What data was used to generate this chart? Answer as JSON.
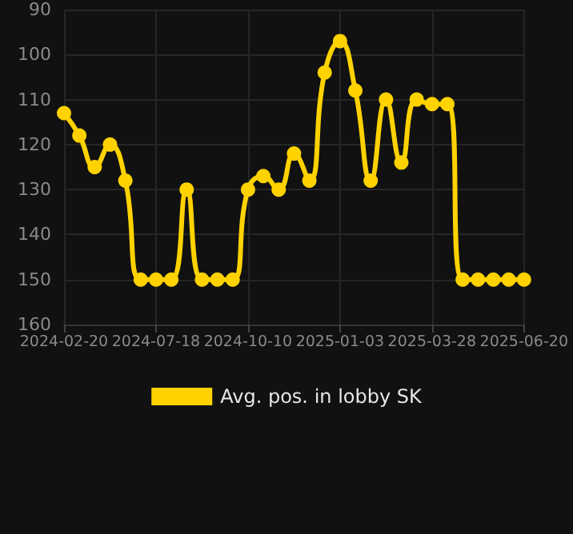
{
  "chart_data": {
    "type": "line",
    "categories": [
      "2024-02-20",
      null,
      null,
      null,
      null,
      null,
      "2024-07-18",
      null,
      null,
      null,
      null,
      null,
      "2024-10-10",
      null,
      null,
      null,
      null,
      null,
      "2025-01-03",
      null,
      null,
      null,
      null,
      null,
      "2025-03-28",
      null,
      null,
      null,
      null,
      null,
      "2025-06-20"
    ],
    "series": [
      {
        "name": "Avg. pos. in lobby SK",
        "color": "#ffd200",
        "values": [
          113,
          118,
          125,
          120,
          128,
          150,
          150,
          150,
          130,
          150,
          150,
          150,
          130,
          127,
          130,
          122,
          128,
          104,
          97,
          108,
          128,
          110,
          124,
          110,
          111,
          111,
          150,
          150,
          150,
          150,
          150
        ]
      }
    ],
    "ylim": [
      160,
      90
    ],
    "yticks": [
      90,
      100,
      110,
      120,
      130,
      140,
      150,
      160
    ],
    "grid": true,
    "legend": "bottom",
    "marker": "circle",
    "line_style": "solid"
  }
}
